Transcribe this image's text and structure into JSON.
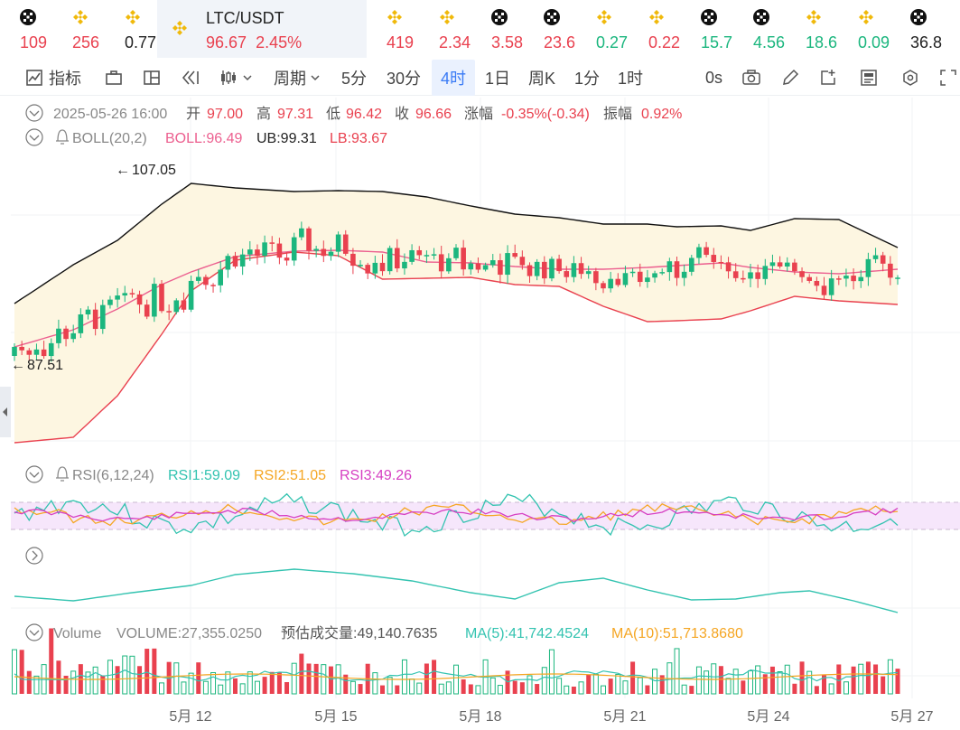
{
  "tickers": [
    {
      "value": "109",
      "color": "red",
      "icon": "okx-icon"
    },
    {
      "value": "256",
      "color": "red",
      "icon": "binance-icon"
    },
    {
      "value": "0.77",
      "color": "black",
      "icon": "binance-icon"
    },
    {
      "value": "419",
      "color": "red",
      "icon": "binance-icon"
    },
    {
      "value": "2.34",
      "color": "red",
      "icon": "binance-icon"
    },
    {
      "value": "3.58",
      "color": "red",
      "icon": "okx-icon"
    },
    {
      "value": "23.6",
      "color": "red",
      "icon": "okx-icon"
    },
    {
      "value": "0.27",
      "color": "green",
      "icon": "binance-icon"
    },
    {
      "value": "0.22",
      "color": "red",
      "icon": "binance-icon"
    },
    {
      "value": "15.7",
      "color": "green",
      "icon": "okx-icon"
    },
    {
      "value": "4.56",
      "color": "green",
      "icon": "okx-icon"
    },
    {
      "value": "18.6",
      "color": "green",
      "icon": "binance-icon"
    },
    {
      "value": "0.09",
      "color": "green",
      "icon": "binance-icon"
    },
    {
      "value": "36.8",
      "color": "black",
      "icon": "okx-icon"
    }
  ],
  "active_pair": {
    "symbol": "LTC/USDT",
    "price": "96.67",
    "change": "2.45%"
  },
  "toolbar": {
    "indicators": "指标",
    "period": "周期",
    "intervals": [
      "5分",
      "30分",
      "4时",
      "1日",
      "周K",
      "1分",
      "1时"
    ],
    "active_interval": "4时",
    "countdown": "0s"
  },
  "ohlc": {
    "datetime": "2025-05-26 16:00",
    "open_label": "开",
    "open": "97.00",
    "high_label": "高",
    "high": "97.31",
    "low_label": "低",
    "low": "96.42",
    "close_label": "收",
    "close": "96.66",
    "change_label": "涨幅",
    "change": "-0.35%(-0.34)",
    "amp_label": "振幅",
    "amp": "0.92%"
  },
  "boll": {
    "name": "BOLL(20,2)",
    "boll": "BOLL:96.49",
    "ub": "UB:99.31",
    "lb": "LB:93.67"
  },
  "rsi": {
    "name": "RSI(6,12,24)",
    "rsi1": "RSI1:59.09",
    "rsi2": "RSI2:51.05",
    "rsi3": "RSI3:49.26"
  },
  "volume": {
    "name": "Volume",
    "volume": "VOLUME:27,355.0250",
    "estimate": "预估成交量:49,140.7635",
    "ma5": "MA(5):41,742.4524",
    "ma10": "MA(10):51,713.8680"
  },
  "price_annotations": {
    "high": "107.05",
    "low": "87.51"
  },
  "x_axis": [
    "5月 12",
    "5月 15",
    "5月 18",
    "5月 21",
    "5月 24",
    "5月 27"
  ],
  "colors": {
    "up": "#1bb67e",
    "down": "#e9414f",
    "accent": "#3a7bf5",
    "boll_mid": "#ec5f8f",
    "ub": "#111111",
    "lb": "#e9414f",
    "rsi1": "#33c3b0",
    "rsi2": "#f5a623",
    "rsi3": "#d63fc2",
    "vol_ma5": "#33c3b0",
    "vol_ma10": "#f5a623"
  }
}
